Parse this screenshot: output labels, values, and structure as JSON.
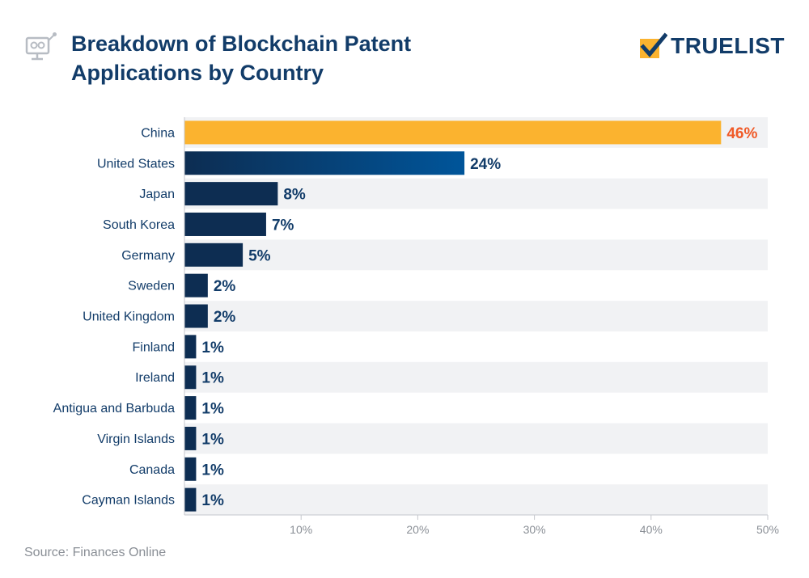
{
  "header": {
    "title_line1": "Breakdown of Blockchain Patent",
    "title_line2": "Applications by Country",
    "icon": "blockchain-network-icon"
  },
  "brand": {
    "name": "TRUELIST",
    "icon": "checkbox-check-icon"
  },
  "source": "Source: Finances Online",
  "colors": {
    "highlight_bar": "#fbb32f",
    "highlight_label": "#f05a28",
    "bar_dark": "#0d2d52",
    "bar_gradient_end": "#00559a",
    "label": "#123c69",
    "band": "#f1f2f4",
    "axis": "#c4c7cc",
    "tick": "#8a8f96"
  },
  "chart_data": {
    "type": "bar",
    "orientation": "horizontal",
    "title": "Breakdown of Blockchain Patent Applications by Country",
    "categories": [
      "China",
      "United States",
      "Japan",
      "South Korea",
      "Germany",
      "Sweden",
      "United Kingdom",
      "Finland",
      "Ireland",
      "Antigua and Barbuda",
      "Virgin Islands",
      "Canada",
      "Cayman Islands"
    ],
    "values": [
      46,
      24,
      8,
      7,
      5,
      2,
      2,
      1,
      1,
      1,
      1,
      1,
      1
    ],
    "value_labels": [
      "46%",
      "24%",
      "8%",
      "7%",
      "5%",
      "2%",
      "2%",
      "1%",
      "1%",
      "1%",
      "1%",
      "1%",
      "1%"
    ],
    "xlim": [
      0,
      50
    ],
    "xticks": [
      10,
      20,
      30,
      40,
      50
    ],
    "xtick_labels": [
      "10%",
      "20%",
      "30%",
      "40%",
      "50%"
    ],
    "xlabel": "",
    "ylabel": "",
    "highlight_index": 0,
    "gradient_index": 1
  }
}
